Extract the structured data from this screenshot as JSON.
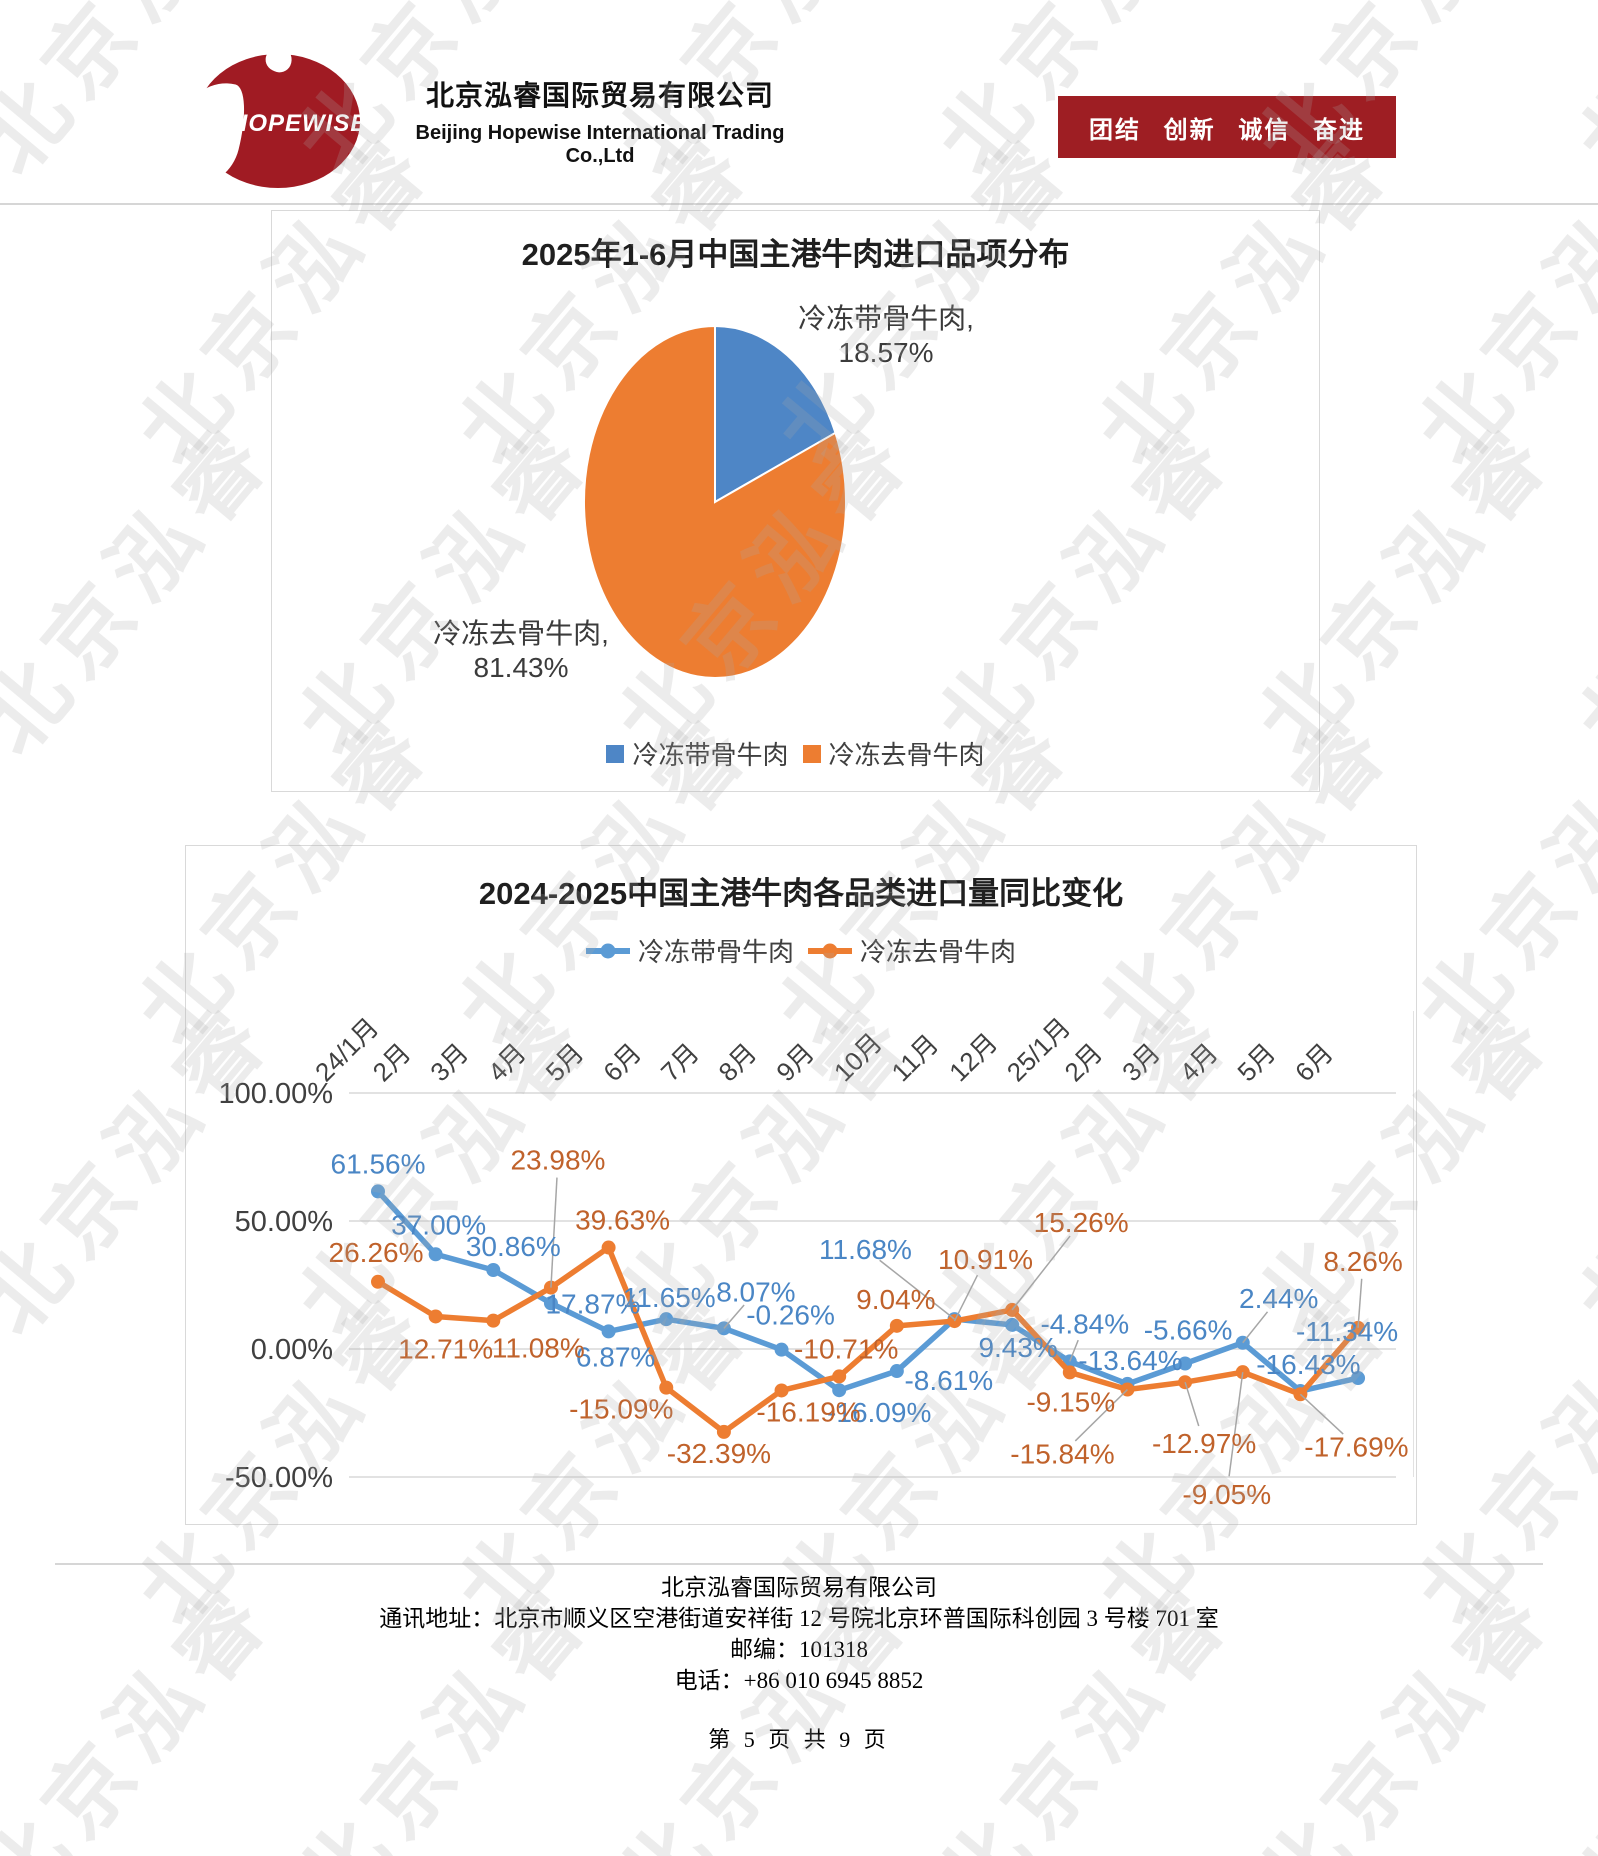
{
  "header": {
    "logo_text": "HOPEWISE",
    "company_cn": "北京泓睿国际贸易有限公司",
    "company_en": "Beijing Hopewise International Trading Co.,Ltd",
    "banner": "团结 创新 诚信 奋进",
    "banner_color": "#9E1E23"
  },
  "watermark": {
    "text": "北京泓睿"
  },
  "chart_data": [
    {
      "type": "pie",
      "title": "2025年1-6月中国主港牛肉进口品项分布",
      "slices": [
        {
          "label": "冷冻带骨牛肉",
          "value": 18.57,
          "color": "#4E86C6"
        },
        {
          "label": "冷冻去骨牛肉",
          "value": 81.43,
          "color": "#ED7D31"
        }
      ],
      "legend_position": "bottom",
      "label_format": "name, percent"
    },
    {
      "type": "line",
      "title": "2024-2025中国主港牛肉各品类进口量同比变化",
      "categories": [
        "24/1月",
        "2月",
        "3月",
        "4月",
        "5月",
        "6月",
        "7月",
        "8月",
        "9月",
        "10月",
        "11月",
        "12月",
        "25/1月",
        "2月",
        "3月",
        "4月",
        "5月",
        "6月"
      ],
      "series": [
        {
          "name": "冷冻带骨牛肉",
          "color": "#5B9BD5",
          "label_color": "#4A86C5",
          "values": [
            61.56,
            37.0,
            30.86,
            17.87,
            6.87,
            11.65,
            8.07,
            -0.26,
            -16.09,
            -8.61,
            11.68,
            9.43,
            -4.84,
            -13.64,
            -5.66,
            2.44,
            -16.43,
            -11.34
          ]
        },
        {
          "name": "冷冻去骨牛肉",
          "color": "#ED7D31",
          "label_color": "#C0622B",
          "values": [
            26.26,
            12.71,
            11.08,
            23.98,
            39.63,
            -15.09,
            -32.39,
            -16.19,
            -10.71,
            9.04,
            10.91,
            15.26,
            -9.15,
            -15.84,
            -12.97,
            -9.05,
            -17.69,
            8.26
          ]
        }
      ],
      "y_ticks": [
        "100.00%",
        "50.00%",
        "0.00%",
        "-50.00%"
      ],
      "y_tick_values": [
        100,
        50,
        0,
        -50
      ],
      "ylim": [
        -50,
        100
      ],
      "grid": true,
      "legend_position": "top"
    }
  ],
  "footer": {
    "company": "北京泓睿国际贸易有限公司",
    "address": "通讯地址：北京市顺义区空港街道安祥街 12 号院北京环普国际科创园 3 号楼 701 室",
    "postcode": "邮编：101318",
    "phone": "电话：+86 010 6945 8852",
    "page": "第 5 页 共 9 页"
  }
}
